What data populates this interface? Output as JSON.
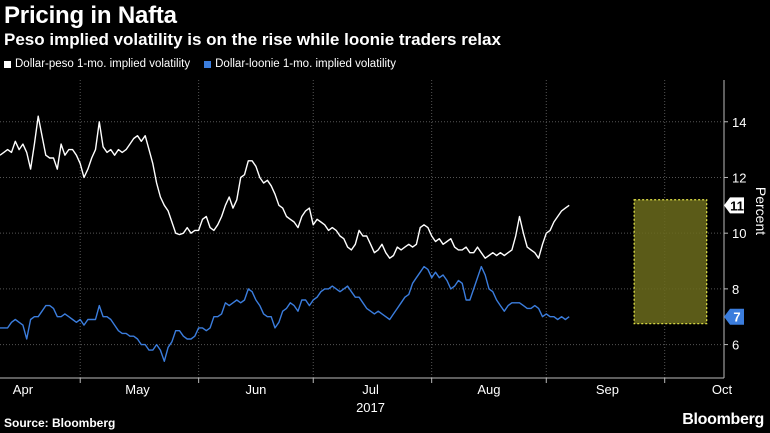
{
  "title": "Pricing in Nafta",
  "subtitle": "Peso implied volatility is on the rise while loonie traders relax",
  "source": "Source: Bloomberg",
  "brand": "Bloomberg",
  "colors": {
    "peso": "#ffffff",
    "loonie": "#3b7ddd",
    "highlight_fill": "#6b6b1c",
    "highlight_border": "#e8e84a",
    "grid": "#555555"
  },
  "chart_data": {
    "type": "line",
    "title": "Pricing in Nafta",
    "subtitle": "Peso implied volatility is on the rise while loonie traders relax",
    "xlabel": "2017",
    "ylabel": "Percent",
    "ylim": [
      4.8,
      15.5
    ],
    "yticks": [
      6,
      8,
      10,
      12,
      14
    ],
    "xticks": [
      {
        "pos": 0,
        "label": "Apr"
      },
      {
        "pos": 30,
        "label": "May"
      },
      {
        "pos": 61,
        "label": "Jun"
      },
      {
        "pos": 91,
        "label": "Jul"
      },
      {
        "pos": 122,
        "label": "Aug"
      },
      {
        "pos": 153,
        "label": "Sep"
      },
      {
        "pos": 183,
        "label": "Oct"
      }
    ],
    "xlim": [
      -6,
      183
    ],
    "grid": true,
    "legend": "top-left",
    "highlight": {
      "x0": 160,
      "x1": 179,
      "y0": 6.75,
      "y1": 11.2
    },
    "series": [
      {
        "name": "Dollar-peso 1-mo. implied volatility",
        "end_label": "11",
        "points": [
          [
            -6,
            12.8
          ],
          [
            -5,
            12.9
          ],
          [
            -4,
            13.0
          ],
          [
            -3,
            12.9
          ],
          [
            -2,
            13.3
          ],
          [
            -1,
            13.0
          ],
          [
            0,
            13.2
          ],
          [
            1,
            12.9
          ],
          [
            2,
            12.3
          ],
          [
            3,
            13.2
          ],
          [
            4,
            14.2
          ],
          [
            5,
            13.5
          ],
          [
            6,
            12.8
          ],
          [
            7,
            12.7
          ],
          [
            8,
            12.7
          ],
          [
            9,
            12.3
          ],
          [
            10,
            13.2
          ],
          [
            11,
            12.8
          ],
          [
            12,
            13.0
          ],
          [
            13,
            13.0
          ],
          [
            14,
            12.8
          ],
          [
            15,
            12.5
          ],
          [
            16,
            12.0
          ],
          [
            17,
            12.3
          ],
          [
            18,
            12.7
          ],
          [
            19,
            13.0
          ],
          [
            20,
            14.0
          ],
          [
            21,
            13.1
          ],
          [
            22,
            12.9
          ],
          [
            23,
            13.0
          ],
          [
            24,
            12.8
          ],
          [
            25,
            13.0
          ],
          [
            26,
            12.9
          ],
          [
            27,
            13.0
          ],
          [
            28,
            13.2
          ],
          [
            29,
            13.4
          ],
          [
            30,
            13.5
          ],
          [
            31,
            13.3
          ],
          [
            32,
            13.5
          ],
          [
            33,
            13.0
          ],
          [
            34,
            12.5
          ],
          [
            35,
            11.8
          ],
          [
            36,
            11.3
          ],
          [
            37,
            11.0
          ],
          [
            38,
            10.8
          ],
          [
            39,
            10.4
          ],
          [
            40,
            10.0
          ],
          [
            41,
            9.95
          ],
          [
            42,
            10.0
          ],
          [
            43,
            10.2
          ],
          [
            44,
            10.0
          ],
          [
            45,
            10.1
          ],
          [
            46,
            10.1
          ],
          [
            47,
            10.5
          ],
          [
            48,
            10.6
          ],
          [
            49,
            10.2
          ],
          [
            50,
            10.1
          ],
          [
            51,
            10.3
          ],
          [
            52,
            10.6
          ],
          [
            53,
            11.0
          ],
          [
            54,
            11.3
          ],
          [
            55,
            10.9
          ],
          [
            56,
            11.2
          ],
          [
            57,
            12.0
          ],
          [
            58,
            12.1
          ],
          [
            59,
            12.6
          ],
          [
            60,
            12.6
          ],
          [
            61,
            12.4
          ],
          [
            62,
            12.0
          ],
          [
            63,
            11.8
          ],
          [
            64,
            11.9
          ],
          [
            65,
            11.7
          ],
          [
            66,
            11.4
          ],
          [
            67,
            11.0
          ],
          [
            68,
            10.9
          ],
          [
            69,
            10.6
          ],
          [
            70,
            10.5
          ],
          [
            71,
            10.4
          ],
          [
            72,
            10.2
          ],
          [
            73,
            10.6
          ],
          [
            74,
            10.8
          ],
          [
            75,
            10.9
          ],
          [
            76,
            10.3
          ],
          [
            77,
            10.5
          ],
          [
            78,
            10.4
          ],
          [
            79,
            10.3
          ],
          [
            80,
            10.1
          ],
          [
            81,
            10.2
          ],
          [
            82,
            10.1
          ],
          [
            83,
            9.9
          ],
          [
            84,
            9.8
          ],
          [
            85,
            9.5
          ],
          [
            86,
            9.4
          ],
          [
            87,
            9.6
          ],
          [
            88,
            10.1
          ],
          [
            89,
            9.9
          ],
          [
            90,
            9.9
          ],
          [
            91,
            9.6
          ],
          [
            92,
            9.3
          ],
          [
            93,
            9.4
          ],
          [
            94,
            9.6
          ],
          [
            95,
            9.3
          ],
          [
            96,
            9.1
          ],
          [
            97,
            9.2
          ],
          [
            98,
            9.5
          ],
          [
            99,
            9.4
          ],
          [
            100,
            9.5
          ],
          [
            101,
            9.6
          ],
          [
            102,
            9.5
          ],
          [
            103,
            9.6
          ],
          [
            104,
            10.2
          ],
          [
            105,
            10.3
          ],
          [
            106,
            10.2
          ],
          [
            107,
            9.9
          ],
          [
            108,
            9.7
          ],
          [
            109,
            9.8
          ],
          [
            110,
            9.6
          ],
          [
            111,
            9.7
          ],
          [
            112,
            9.8
          ],
          [
            113,
            9.5
          ],
          [
            114,
            9.4
          ],
          [
            115,
            9.4
          ],
          [
            116,
            9.5
          ],
          [
            117,
            9.3
          ],
          [
            118,
            9.3
          ],
          [
            119,
            9.5
          ],
          [
            120,
            9.3
          ],
          [
            121,
            9.1
          ],
          [
            122,
            9.2
          ],
          [
            123,
            9.3
          ],
          [
            124,
            9.2
          ],
          [
            125,
            9.3
          ],
          [
            126,
            9.2
          ],
          [
            127,
            9.3
          ],
          [
            128,
            9.4
          ],
          [
            129,
            9.9
          ],
          [
            130,
            10.6
          ],
          [
            131,
            10.0
          ],
          [
            132,
            9.5
          ],
          [
            133,
            9.4
          ],
          [
            134,
            9.3
          ],
          [
            135,
            9.1
          ],
          [
            136,
            9.6
          ],
          [
            137,
            10.0
          ],
          [
            138,
            10.1
          ],
          [
            139,
            10.4
          ],
          [
            140,
            10.6
          ],
          [
            141,
            10.8
          ],
          [
            142,
            10.9
          ],
          [
            143,
            11.0
          ]
        ]
      },
      {
        "name": "Dollar-loonie 1-mo. implied volatility",
        "end_label": "7",
        "points": [
          [
            -6,
            6.6
          ],
          [
            -5,
            6.6
          ],
          [
            -4,
            6.6
          ],
          [
            -3,
            6.8
          ],
          [
            -2,
            6.9
          ],
          [
            -1,
            6.8
          ],
          [
            0,
            6.7
          ],
          [
            1,
            6.2
          ],
          [
            2,
            6.9
          ],
          [
            3,
            7.0
          ],
          [
            4,
            7.0
          ],
          [
            5,
            7.2
          ],
          [
            6,
            7.4
          ],
          [
            7,
            7.4
          ],
          [
            8,
            7.3
          ],
          [
            9,
            7.0
          ],
          [
            10,
            7.0
          ],
          [
            11,
            7.1
          ],
          [
            12,
            7.0
          ],
          [
            13,
            6.9
          ],
          [
            14,
            6.8
          ],
          [
            15,
            6.9
          ],
          [
            16,
            6.7
          ],
          [
            17,
            6.9
          ],
          [
            18,
            6.9
          ],
          [
            19,
            6.9
          ],
          [
            20,
            7.4
          ],
          [
            21,
            7.0
          ],
          [
            22,
            7.0
          ],
          [
            23,
            6.9
          ],
          [
            24,
            6.7
          ],
          [
            25,
            6.5
          ],
          [
            26,
            6.4
          ],
          [
            27,
            6.4
          ],
          [
            28,
            6.3
          ],
          [
            29,
            6.3
          ],
          [
            30,
            6.2
          ],
          [
            31,
            6.0
          ],
          [
            32,
            6.0
          ],
          [
            33,
            5.8
          ],
          [
            34,
            5.8
          ],
          [
            35,
            6.0
          ],
          [
            36,
            5.8
          ],
          [
            37,
            5.4
          ],
          [
            38,
            5.9
          ],
          [
            39,
            6.1
          ],
          [
            40,
            6.5
          ],
          [
            41,
            6.5
          ],
          [
            42,
            6.3
          ],
          [
            43,
            6.2
          ],
          [
            44,
            6.2
          ],
          [
            45,
            6.3
          ],
          [
            46,
            6.6
          ],
          [
            47,
            6.6
          ],
          [
            48,
            6.5
          ],
          [
            49,
            6.6
          ],
          [
            50,
            7.0
          ],
          [
            51,
            7.0
          ],
          [
            52,
            7.1
          ],
          [
            53,
            7.5
          ],
          [
            54,
            7.4
          ],
          [
            55,
            7.5
          ],
          [
            56,
            7.6
          ],
          [
            57,
            7.5
          ],
          [
            58,
            7.6
          ],
          [
            59,
            8.0
          ],
          [
            60,
            7.9
          ],
          [
            61,
            7.6
          ],
          [
            62,
            7.4
          ],
          [
            63,
            7.1
          ],
          [
            64,
            7.0
          ],
          [
            65,
            7.0
          ],
          [
            66,
            6.6
          ],
          [
            67,
            6.8
          ],
          [
            68,
            7.2
          ],
          [
            69,
            7.3
          ],
          [
            70,
            7.5
          ],
          [
            71,
            7.4
          ],
          [
            72,
            7.2
          ],
          [
            73,
            7.6
          ],
          [
            74,
            7.6
          ],
          [
            75,
            7.4
          ],
          [
            76,
            7.6
          ],
          [
            77,
            7.7
          ],
          [
            78,
            7.9
          ],
          [
            79,
            8.0
          ],
          [
            80,
            8.0
          ],
          [
            81,
            8.1
          ],
          [
            82,
            8.0
          ],
          [
            83,
            7.9
          ],
          [
            84,
            8.0
          ],
          [
            85,
            8.1
          ],
          [
            86,
            7.9
          ],
          [
            87,
            7.7
          ],
          [
            88,
            7.7
          ],
          [
            89,
            7.5
          ],
          [
            90,
            7.3
          ],
          [
            91,
            7.2
          ],
          [
            92,
            7.1
          ],
          [
            93,
            7.2
          ],
          [
            94,
            7.1
          ],
          [
            95,
            7.0
          ],
          [
            96,
            6.9
          ],
          [
            97,
            7.1
          ],
          [
            98,
            7.3
          ],
          [
            99,
            7.5
          ],
          [
            100,
            7.7
          ],
          [
            101,
            7.8
          ],
          [
            102,
            8.2
          ],
          [
            103,
            8.4
          ],
          [
            104,
            8.6
          ],
          [
            105,
            8.8
          ],
          [
            106,
            8.7
          ],
          [
            107,
            8.4
          ],
          [
            108,
            8.6
          ],
          [
            109,
            8.4
          ],
          [
            110,
            8.5
          ],
          [
            111,
            8.3
          ],
          [
            112,
            8.0
          ],
          [
            113,
            8.1
          ],
          [
            114,
            8.3
          ],
          [
            115,
            8.2
          ],
          [
            116,
            7.6
          ],
          [
            117,
            7.6
          ],
          [
            118,
            8.0
          ],
          [
            119,
            8.4
          ],
          [
            120,
            8.8
          ],
          [
            121,
            8.5
          ],
          [
            122,
            8.0
          ],
          [
            123,
            7.9
          ],
          [
            124,
            7.6
          ],
          [
            125,
            7.4
          ],
          [
            126,
            7.2
          ],
          [
            127,
            7.4
          ],
          [
            128,
            7.5
          ],
          [
            129,
            7.5
          ],
          [
            130,
            7.5
          ],
          [
            131,
            7.4
          ],
          [
            132,
            7.3
          ],
          [
            133,
            7.3
          ],
          [
            134,
            7.4
          ],
          [
            135,
            7.3
          ],
          [
            136,
            7.0
          ],
          [
            137,
            7.1
          ],
          [
            138,
            7.0
          ],
          [
            139,
            7.0
          ],
          [
            140,
            6.9
          ],
          [
            141,
            7.0
          ],
          [
            142,
            6.9
          ],
          [
            143,
            7.0
          ]
        ]
      }
    ]
  }
}
